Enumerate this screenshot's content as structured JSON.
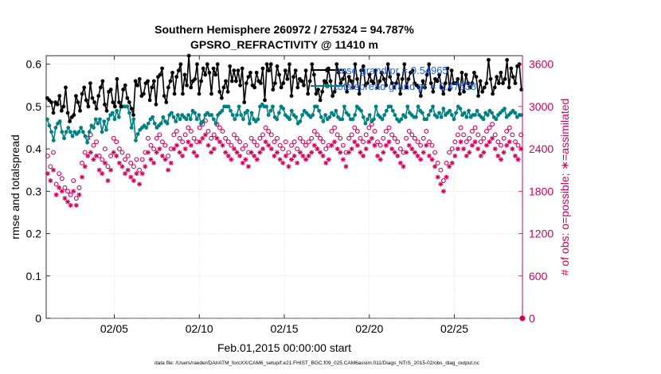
{
  "chart_data": {
    "type": "line",
    "title": "Southern Hemisphere 260972 / 275324 = 94.787%",
    "subtitle": "GPSRO_REFRACTIVITY @ 11410 m",
    "xlabel": "Feb.01,2015 00:00:00 start",
    "ylabel_left": "rmse and totalspread",
    "ylabel_right": "# of obs: o=possible; ∗=assimilated",
    "footer": "data file: /Users/raeder/DAI/ATM_forcXX/CAM6_setup/f.e21.FHIST_BGC.f09_025.CAM6assim.011/Diags_NTrS_2015-02/obs_diag_output.nc",
    "x_ticks": [
      {
        "x": 5,
        "label": "02/05"
      },
      {
        "x": 10,
        "label": "02/10"
      },
      {
        "x": 15,
        "label": "02/15"
      },
      {
        "x": 20,
        "label": "02/20"
      },
      {
        "x": 25,
        "label": "02/25"
      }
    ],
    "xlim": [
      1,
      29
    ],
    "ylim_left": [
      0,
      0.62
    ],
    "ylim_right": [
      0,
      3720
    ],
    "yticks_left": [
      "0",
      "0.1",
      "0.2",
      "0.3",
      "0.4",
      "0.5",
      "0.6"
    ],
    "yticks_right": [
      "0",
      "600",
      "1200",
      "1800",
      "2400",
      "3000",
      "3600"
    ],
    "grid": true,
    "legend": [
      {
        "label": "rmse grand pr = 0.54965",
        "color": "#000000"
      },
      {
        "label": "totalspread grand pr = 0.47538",
        "color": "#008080"
      }
    ],
    "colors": {
      "rmse": "#000000",
      "spread": "#008080",
      "obs": "#d1005c",
      "legend_text": "#1f5fe0"
    },
    "series": [
      {
        "name": "rmse",
        "axis": "left",
        "values": [
          0.52,
          0.515,
          0.51,
          0.485,
          0.51,
          0.505,
          0.525,
          0.49,
          0.5,
          0.545,
          0.485,
          0.465,
          0.475,
          0.48,
          0.525,
          0.51,
          0.49,
          0.53,
          0.545,
          0.515,
          0.5,
          0.555,
          0.52,
          0.51,
          0.495,
          0.525,
          0.545,
          0.56,
          0.505,
          0.49,
          0.535,
          0.54,
          0.51,
          0.5,
          0.565,
          0.51,
          0.5,
          0.54,
          0.55,
          0.52,
          0.51,
          0.495,
          0.48,
          0.56,
          0.55,
          0.565,
          0.525,
          0.53,
          0.555,
          0.56,
          0.515,
          0.545,
          0.56,
          0.505,
          0.57,
          0.575,
          0.59,
          0.525,
          0.51,
          0.545,
          0.56,
          0.58,
          0.53,
          0.57,
          0.585,
          0.6,
          0.53,
          0.575,
          0.55,
          0.62,
          0.545,
          0.56,
          0.565,
          0.6,
          0.53,
          0.56,
          0.59,
          0.575,
          0.6,
          0.58,
          0.53,
          0.59,
          0.575,
          0.6,
          0.535,
          0.52,
          0.545,
          0.56,
          0.535,
          0.595,
          0.56,
          0.585,
          0.56,
          0.585,
          0.55,
          0.59,
          0.51,
          0.555,
          0.57,
          0.58,
          0.55,
          0.545,
          0.58,
          0.56,
          0.555,
          0.59,
          0.515,
          0.6,
          0.585,
          0.6,
          0.54,
          0.555,
          0.595,
          0.575,
          0.545,
          0.555,
          0.585,
          0.565,
          0.6,
          0.525,
          0.57,
          0.585,
          0.545,
          0.565,
          0.56,
          0.55,
          0.585,
          0.53,
          0.56,
          0.6,
          0.575,
          0.53,
          0.54,
          0.515,
          0.535,
          0.56,
          0.555,
          0.59,
          0.56,
          0.525,
          0.535,
          0.6,
          0.58,
          0.555,
          0.565,
          0.58,
          0.535,
          0.57,
          0.56,
          0.545,
          0.6,
          0.565,
          0.53,
          0.585,
          0.595,
          0.55,
          0.555,
          0.575,
          0.56,
          0.555,
          0.585,
          0.545,
          0.56,
          0.58,
          0.565,
          0.55,
          0.6,
          0.57,
          0.555,
          0.545,
          0.555,
          0.575,
          0.53,
          0.565,
          0.6,
          0.545,
          0.565,
          0.58,
          0.585,
          0.555,
          0.55,
          0.545,
          0.525,
          0.56,
          0.545,
          0.575,
          0.6,
          0.555,
          0.535,
          0.565,
          0.56,
          0.575,
          0.545,
          0.53,
          0.555,
          0.59,
          0.54,
          0.585,
          0.555,
          0.555,
          0.565,
          0.53,
          0.58,
          0.535,
          0.575,
          0.555,
          0.545,
          0.555,
          0.58,
          0.57,
          0.525,
          0.56,
          0.535,
          0.545,
          0.555,
          0.61,
          0.565,
          0.53,
          0.545,
          0.57,
          0.555,
          0.58,
          0.555,
          0.565,
          0.61,
          0.545,
          0.59,
          0.57,
          0.555,
          0.595,
          0.6,
          0.54
        ]
      },
      {
        "name": "totalspread",
        "axis": "left",
        "values": [
          0.47,
          0.455,
          0.44,
          0.42,
          0.45,
          0.46,
          0.465,
          0.44,
          0.425,
          0.44,
          0.45,
          0.44,
          0.43,
          0.44,
          0.435,
          0.44,
          0.45,
          0.44,
          0.43,
          0.415,
          0.44,
          0.455,
          0.45,
          0.47,
          0.46,
          0.47,
          0.44,
          0.465,
          0.445,
          0.47,
          0.48,
          0.485,
          0.47,
          0.49,
          0.475,
          0.5,
          0.5,
          0.5,
          0.5,
          0.485,
          0.45,
          0.47,
          0.42,
          0.435,
          0.445,
          0.45,
          0.455,
          0.45,
          0.46,
          0.47,
          0.475,
          0.46,
          0.45,
          0.455,
          0.46,
          0.475,
          0.465,
          0.46,
          0.48,
          0.485,
          0.475,
          0.465,
          0.48,
          0.47,
          0.48,
          0.475,
          0.47,
          0.48,
          0.47,
          0.49,
          0.485,
          0.47,
          0.48,
          0.46,
          0.465,
          0.48,
          0.485,
          0.48,
          0.48,
          0.47,
          0.46,
          0.48,
          0.485,
          0.49,
          0.5,
          0.5,
          0.5,
          0.49,
          0.48,
          0.47,
          0.48,
          0.5,
          0.48,
          0.47,
          0.485,
          0.49,
          0.46,
          0.485,
          0.47,
          0.465,
          0.47,
          0.5,
          0.505,
          0.5,
          0.5,
          0.48,
          0.49,
          0.5,
          0.475,
          0.47,
          0.485,
          0.5,
          0.495,
          0.48,
          0.475,
          0.47,
          0.49,
          0.48,
          0.475,
          0.46,
          0.465,
          0.48,
          0.49,
          0.485,
          0.48,
          0.475,
          0.48,
          0.5,
          0.5,
          0.49,
          0.475,
          0.465,
          0.48,
          0.47,
          0.475,
          0.485,
          0.48,
          0.49,
          0.475,
          0.47,
          0.47,
          0.5,
          0.485,
          0.48,
          0.47,
          0.47,
          0.48,
          0.5,
          0.495,
          0.49,
          0.475,
          0.46,
          0.47,
          0.48,
          0.465,
          0.47,
          0.5,
          0.48,
          0.475,
          0.47,
          0.48,
          0.49,
          0.5,
          0.5,
          0.49,
          0.48,
          0.47,
          0.465,
          0.47,
          0.48,
          0.475,
          0.5,
          0.485,
          0.48,
          0.475,
          0.475,
          0.5,
          0.49,
          0.485,
          0.47,
          0.47,
          0.48,
          0.49,
          0.5,
          0.48,
          0.475,
          0.485,
          0.475,
          0.495,
          0.48,
          0.485,
          0.49,
          0.48,
          0.47,
          0.485,
          0.5,
          0.495,
          0.48,
          0.485,
          0.475,
          0.49,
          0.475,
          0.48,
          0.48,
          0.49,
          0.48,
          0.475,
          0.47,
          0.485,
          0.48,
          0.49,
          0.485,
          0.475,
          0.47,
          0.48,
          0.485,
          0.49,
          0.495,
          0.475,
          0.48,
          0.485,
          0.49,
          0.485,
          0.475,
          0.48,
          0.48
        ]
      },
      {
        "name": "possible",
        "axis": "right",
        "values": [
          2300,
          2150,
          2350,
          1900,
          2050,
          1980,
          1850,
          1800,
          1750,
          1950,
          1700,
          1850,
          2200,
          2350,
          2550,
          2600,
          2450,
          2500,
          2300,
          2250,
          2400,
          2150,
          2300,
          2550,
          2500,
          2400,
          2350,
          2250,
          2300,
          2200,
          2150,
          2250,
          2100,
          2250,
          2350,
          2550,
          2450,
          2400,
          2550,
          2600,
          2500,
          2450,
          2300,
          2400,
          2600,
          2650,
          2550,
          2500,
          2600,
          2700,
          2650,
          2550,
          2500,
          2700,
          2750,
          2800,
          2650,
          2550,
          2600,
          2750,
          2700,
          2650,
          2550,
          2500,
          2450,
          2600,
          2550,
          2500,
          2400,
          2450,
          2350,
          2550,
          2500,
          2450,
          2550,
          2600,
          2700,
          2650,
          2600,
          2500,
          2550,
          2450,
          2400,
          2500,
          2350,
          2450,
          2500,
          2400,
          2550,
          2500,
          2450,
          2500,
          2550,
          2650,
          2600,
          2550,
          2500,
          2400,
          2450,
          2650,
          2700,
          2600,
          2550,
          2450,
          2350,
          2550,
          2600,
          2700,
          2650,
          2550,
          2500,
          2600,
          2700,
          2750,
          2650,
          2500,
          2450,
          2550,
          2650,
          2700,
          2600,
          2550,
          2500,
          2400,
          2350,
          2550,
          2650,
          2600,
          2550,
          2500,
          2450,
          2550,
          2650,
          2500,
          2450,
          2350,
          2200,
          2100,
          1950,
          2200,
          2350,
          2400,
          2500,
          2600,
          2700,
          2600,
          2500,
          2550,
          2650,
          2700,
          2600,
          2500,
          2550,
          2650,
          2700,
          2750,
          2600,
          2500,
          2450,
          2550,
          2650,
          2700,
          2600,
          2500,
          2450,
          2600
        ]
      },
      {
        "name": "assimilated",
        "axis": "right",
        "values": [
          2050,
          1950,
          2100,
          1750,
          1850,
          1800,
          1700,
          1650,
          1600,
          1800,
          1600,
          1750,
          2000,
          2150,
          2300,
          2350,
          2250,
          2300,
          2100,
          2050,
          2200,
          1950,
          2100,
          2350,
          2300,
          2200,
          2150,
          2050,
          2100,
          2000,
          1950,
          2050,
          1900,
          2050,
          2150,
          2350,
          2250,
          2200,
          2350,
          2400,
          2300,
          2250,
          2100,
          2200,
          2400,
          2450,
          2350,
          2300,
          2400,
          2500,
          2450,
          2350,
          2300,
          2500,
          2550,
          2600,
          2450,
          2350,
          2400,
          2550,
          2500,
          2450,
          2350,
          2300,
          2250,
          2400,
          2350,
          2300,
          2200,
          2250,
          2150,
          2350,
          2300,
          2250,
          2350,
          2400,
          2500,
          2450,
          2400,
          2300,
          2350,
          2250,
          2200,
          2300,
          2150,
          2250,
          2300,
          2200,
          2350,
          2300,
          2250,
          2300,
          2350,
          2450,
          2400,
          2350,
          2300,
          2200,
          2250,
          2450,
          2500,
          2400,
          2350,
          2250,
          2150,
          2350,
          2400,
          2500,
          2450,
          2350,
          2300,
          2400,
          2500,
          2550,
          2450,
          2300,
          2250,
          2350,
          2450,
          2500,
          2400,
          2350,
          2300,
          2200,
          2150,
          2350,
          2450,
          2400,
          2350,
          2300,
          2250,
          2350,
          2450,
          2300,
          2250,
          2150,
          2000,
          1900,
          1800,
          2000,
          2150,
          2200,
          2300,
          2400,
          2500,
          2400,
          2300,
          2350,
          2450,
          2500,
          2400,
          2300,
          2350,
          2450,
          2500,
          2550,
          2400,
          2300,
          2250,
          2350,
          2450,
          2500,
          2400,
          2300,
          2250,
          2400
        ]
      }
    ]
  }
}
